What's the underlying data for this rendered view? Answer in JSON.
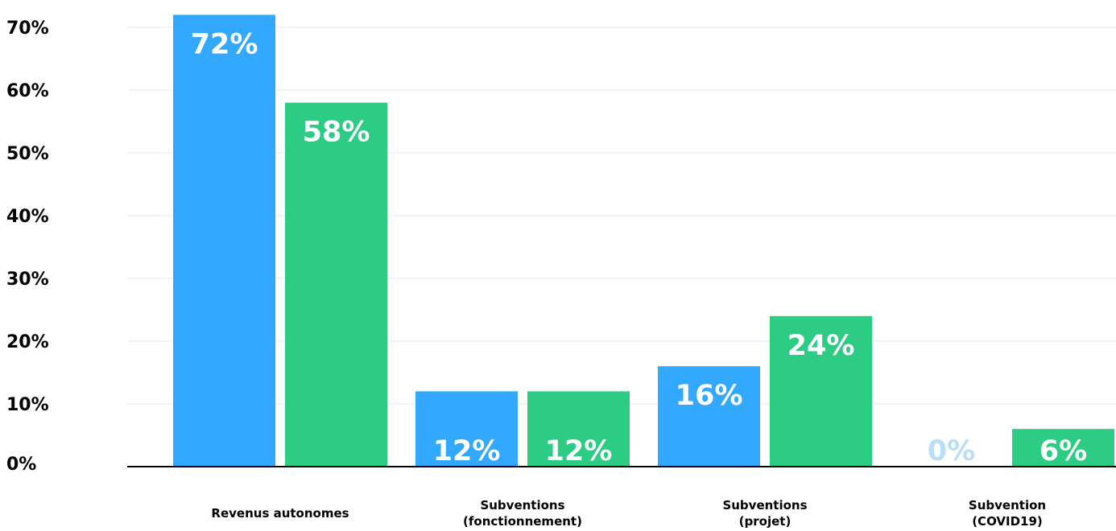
{
  "chart_data": {
    "type": "bar",
    "title": "",
    "xlabel": "",
    "ylabel": "",
    "ylim": [
      0,
      70
    ],
    "yticks": [
      "0%",
      "10%",
      "20%",
      "30%",
      "40%",
      "50%",
      "60%",
      "70%"
    ],
    "grid": true,
    "legend": "none",
    "categories": [
      [
        "Revenus autonomes"
      ],
      [
        "Subventions",
        "(fonctionnement)"
      ],
      [
        "Subventions",
        "(projet)"
      ],
      [
        "Subvention",
        "(COVID19)"
      ]
    ],
    "series": [
      {
        "color": "#33a8ff",
        "values": [
          72,
          12,
          16,
          0
        ],
        "labels": [
          "72%",
          "12%",
          "16%",
          "0%"
        ]
      },
      {
        "color": "#2ccc84",
        "values": [
          58,
          12,
          24,
          6
        ],
        "labels": [
          "58%",
          "12%",
          "24%",
          "6%"
        ]
      }
    ],
    "colors": {
      "gridline": "#e8e8e8",
      "axis": "#000000",
      "bar_label": "#ffffff",
      "zero_label": "#b8def8"
    }
  }
}
